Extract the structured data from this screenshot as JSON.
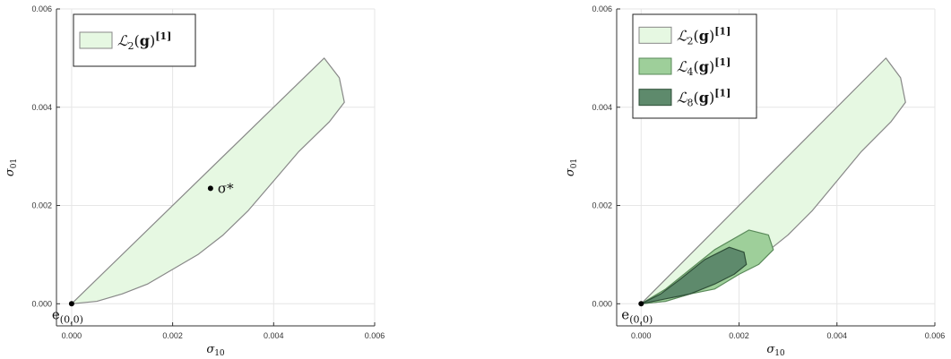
{
  "chart_data": [
    {
      "type": "area",
      "title": "",
      "xlabel": {
        "base": "σ",
        "sub": "10"
      },
      "ylabel": {
        "base": "σ",
        "sub": "01"
      },
      "xlim": [
        -0.0003,
        0.006
      ],
      "ylim": [
        -0.00045,
        0.006
      ],
      "xticks": [
        0,
        0.002,
        0.004,
        0.006
      ],
      "yticks": [
        0,
        0.002,
        0.004,
        0.006
      ],
      "xtick_labels": [
        "0.000",
        "0.002",
        "0.004",
        "0.006"
      ],
      "ytick_labels": [
        "0.000",
        "0.002",
        "0.004",
        "0.006"
      ],
      "grid": true,
      "legend_position": "top-left",
      "regions": [
        {
          "name": {
            "main": "ℒ",
            "sub": "2",
            "arg": "(g)",
            "sup": "[1]"
          },
          "color": "#e6f8e2",
          "outline": "#888888",
          "points": [
            [
              0,
              0
            ],
            [
              0.0005,
              5e-05
            ],
            [
              0.001,
              0.0002
            ],
            [
              0.0015,
              0.0004
            ],
            [
              0.002,
              0.0007
            ],
            [
              0.0025,
              0.001
            ],
            [
              0.003,
              0.0014
            ],
            [
              0.0035,
              0.0019
            ],
            [
              0.004,
              0.0025
            ],
            [
              0.0045,
              0.0031
            ],
            [
              0.0051,
              0.0037
            ],
            [
              0.0054,
              0.0041
            ],
            [
              0.0053,
              0.0046
            ],
            [
              0.005,
              0.005
            ],
            [
              0,
              0
            ]
          ]
        }
      ],
      "points": [
        {
          "label": "σ*",
          "x": 0.00275,
          "y": 0.00235
        },
        {
          "label": "e(0,0)",
          "label_main": "e",
          "label_sub": "(0,0)",
          "x": 0,
          "y": 0
        }
      ]
    },
    {
      "type": "area",
      "title": "",
      "xlabel": {
        "base": "σ",
        "sub": "10"
      },
      "ylabel": {
        "base": "σ",
        "sub": "01"
      },
      "xlim": [
        -0.0005,
        0.006
      ],
      "ylim": [
        -0.00045,
        0.006
      ],
      "xticks": [
        0,
        0.002,
        0.004,
        0.006
      ],
      "yticks": [
        0,
        0.002,
        0.004,
        0.006
      ],
      "xtick_labels": [
        "0.000",
        "0.002",
        "0.004",
        "0.006"
      ],
      "ytick_labels": [
        "0.000",
        "0.002",
        "0.004",
        "0.006"
      ],
      "grid": true,
      "legend_position": "top-left",
      "regions": [
        {
          "name": {
            "main": "ℒ",
            "sub": "2",
            "arg": "(g)",
            "sup": "[1]"
          },
          "color": "#e6f8e2",
          "outline": "#888888",
          "points": [
            [
              0,
              0
            ],
            [
              0.0005,
              5e-05
            ],
            [
              0.001,
              0.0002
            ],
            [
              0.0015,
              0.0004
            ],
            [
              0.002,
              0.0007
            ],
            [
              0.0025,
              0.001
            ],
            [
              0.003,
              0.0014
            ],
            [
              0.0035,
              0.0019
            ],
            [
              0.004,
              0.0025
            ],
            [
              0.0045,
              0.0031
            ],
            [
              0.0051,
              0.0037
            ],
            [
              0.0054,
              0.0041
            ],
            [
              0.0053,
              0.0046
            ],
            [
              0.005,
              0.005
            ],
            [
              0,
              0
            ]
          ]
        },
        {
          "name": {
            "main": "ℒ",
            "sub": "4",
            "arg": "(g)",
            "sup": "[1]"
          },
          "color": "#9ecf9a",
          "outline": "#5a8a5a",
          "points": [
            [
              0,
              0
            ],
            [
              0.0005,
              5e-05
            ],
            [
              0.001,
              0.0002
            ],
            [
              0.0015,
              0.0003
            ],
            [
              0.002,
              0.0006
            ],
            [
              0.0024,
              0.0008
            ],
            [
              0.0027,
              0.0011
            ],
            [
              0.0026,
              0.0014
            ],
            [
              0.0022,
              0.0015
            ],
            [
              0.0015,
              0.0011
            ],
            [
              0.001,
              0.0007
            ],
            [
              0.0005,
              0.0003
            ],
            [
              0,
              0
            ]
          ]
        },
        {
          "name": {
            "main": "ℒ",
            "sub": "8",
            "arg": "(g)",
            "sup": "[1]"
          },
          "color": "#5e8a6c",
          "outline": "#2f4f38",
          "points": [
            [
              0,
              0
            ],
            [
              0.0005,
              0.0001
            ],
            [
              0.001,
              0.0002
            ],
            [
              0.0015,
              0.0004
            ],
            [
              0.0019,
              0.0006
            ],
            [
              0.00215,
              0.0008
            ],
            [
              0.0021,
              0.00105
            ],
            [
              0.0018,
              0.00115
            ],
            [
              0.0013,
              0.0009
            ],
            [
              0.0008,
              0.0005
            ],
            [
              0.0004,
              0.0002
            ],
            [
              0,
              0
            ]
          ]
        }
      ],
      "points": [
        {
          "label": "e(0,0)",
          "label_main": "e",
          "label_sub": "(0,0)",
          "x": 0,
          "y": 0
        }
      ]
    }
  ]
}
